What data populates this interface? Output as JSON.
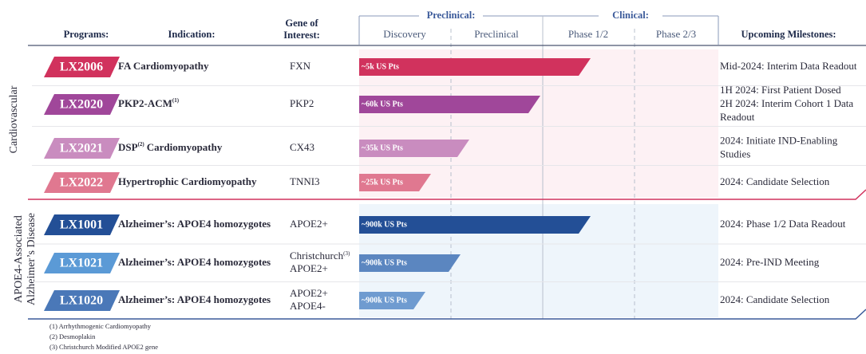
{
  "header": {
    "programs": "Programs:",
    "indication": "Indication:",
    "gene": [
      "Gene of",
      "Interest:"
    ],
    "stage_groups": [
      "Preclinical:",
      "Clinical:"
    ],
    "stages": [
      "Discovery",
      "Preclinical",
      "Phase 1/2",
      "Phase 2/3"
    ],
    "milestones": "Upcoming Milestones:"
  },
  "groups": [
    {
      "label": [
        "Cardiovascular"
      ],
      "rows": [
        {
          "program": "LX2006",
          "indication": "FA Cardiomyopathy",
          "gene": [
            "FXN"
          ],
          "patients": "~5k US Pts",
          "milestone": [
            "Mid-2024: Interim Data Readout"
          ]
        },
        {
          "program": "LX2020",
          "indication": "PKP2-ACM",
          "note": "(1)",
          "gene": [
            "PKP2"
          ],
          "patients": "~60k US Pts",
          "milestone": [
            "1H 2024: First Patient Dosed",
            "2H 2024: Interim Cohort 1 Data",
            "Readout"
          ]
        },
        {
          "program": "LX2021",
          "indication": "DSP",
          "note": "(2)",
          "indication_rest": "Cardiomyopathy",
          "gene": [
            "CX43"
          ],
          "patients": "~35k US Pts",
          "milestone": [
            "2024: Initiate IND-Enabling",
            "Studies"
          ]
        },
        {
          "program": "LX2022",
          "indication": "Hypertrophic Cardiomyopathy",
          "gene": [
            "TNNI3"
          ],
          "patients": "~25k US Pts",
          "milestone": [
            "2024: Candidate Selection"
          ]
        }
      ]
    },
    {
      "label": [
        "APOE4-Associated",
        "Alzheimer’s Disease"
      ],
      "rows": [
        {
          "program": "LX1001",
          "indication": "Alzheimer’s: APOE4 homozygotes",
          "gene": [
            "APOE2+"
          ],
          "patients": "~900k US Pts",
          "milestone": [
            "2024: Phase 1/2 Data Readout"
          ]
        },
        {
          "program": "LX1021",
          "indication": "Alzheimer’s: APOE4 homozygotes",
          "gene": [
            "Christchurch",
            "APOE2+"
          ],
          "gene_note": "(3)",
          "patients": "~900k US Pts",
          "milestone": [
            "2024: Pre-IND Meeting"
          ]
        },
        {
          "program": "LX1020",
          "indication": "Alzheimer’s: APOE4 homozygotes",
          "gene": [
            "APOE2+",
            "APOE4-"
          ],
          "patients": "~900k US Pts",
          "milestone": [
            "2024: Candidate Selection"
          ]
        }
      ]
    }
  ],
  "footnotes": [
    "(1)   Arrhythmogenic Cardiomyopathy",
    "(2)   Desmoplakin",
    "(3)   Christchurch Modified APOE2 gene"
  ]
}
